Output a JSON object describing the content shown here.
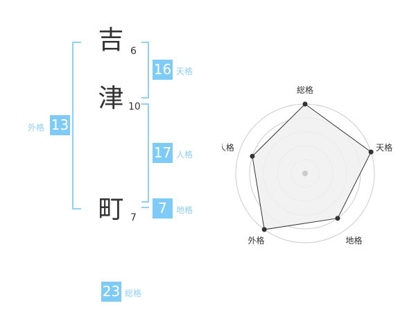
{
  "name": {
    "chars": [
      {
        "char": "吉",
        "strokes": "6"
      },
      {
        "char": "津",
        "strokes": "10"
      },
      {
        "char": "町",
        "strokes": "7"
      }
    ]
  },
  "kaku": {
    "tenkaku": {
      "value": "16",
      "label": "天格"
    },
    "jinkaku": {
      "value": "17",
      "label": "人格"
    },
    "chikaku": {
      "value": "7",
      "label": "地格"
    },
    "gaikaku": {
      "value": "13",
      "label": "外格"
    },
    "soukaku": {
      "value": "23",
      "label": "総格"
    }
  },
  "colors": {
    "accent": "#7fcbf7",
    "label": "#8fd0f5",
    "text": "#333333"
  },
  "chart_data": {
    "type": "radar",
    "categories": [
      "総格",
      "天格",
      "地格",
      "外格",
      "人格"
    ],
    "values": [
      5,
      5,
      4,
      5,
      4
    ],
    "range": [
      0,
      5
    ],
    "rings": 5,
    "fill": "#f0f0f0",
    "line": "#333333"
  }
}
